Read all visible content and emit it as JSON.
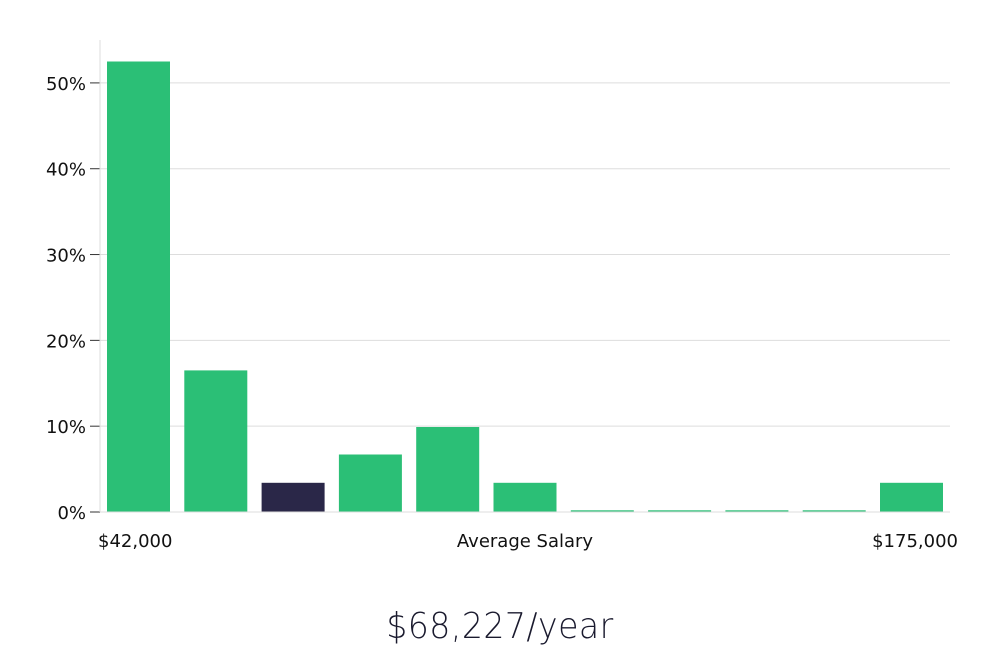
{
  "chart_data": {
    "type": "bar",
    "title": "",
    "xlabel": "Average Salary",
    "ylabel": "",
    "x_range_labels": [
      "$42,000",
      "$175,000"
    ],
    "bins": 11,
    "values": [
      52.5,
      16.5,
      3.4,
      6.7,
      9.9,
      3.4,
      0.2,
      0.2,
      0.2,
      0.2,
      3.4
    ],
    "highlight_index": 2,
    "ylim": [
      0,
      55
    ],
    "yticks": [
      0,
      10,
      20,
      30,
      40,
      50
    ],
    "ytick_labels": [
      "0%",
      "10%",
      "20%",
      "30%",
      "40%",
      "50%"
    ],
    "grid": true
  },
  "colors": {
    "bar": "#2bbf76",
    "highlight": "#2a2748",
    "grid": "#dddddd",
    "axis": "#dddddd"
  },
  "headline": "$68,227/year"
}
